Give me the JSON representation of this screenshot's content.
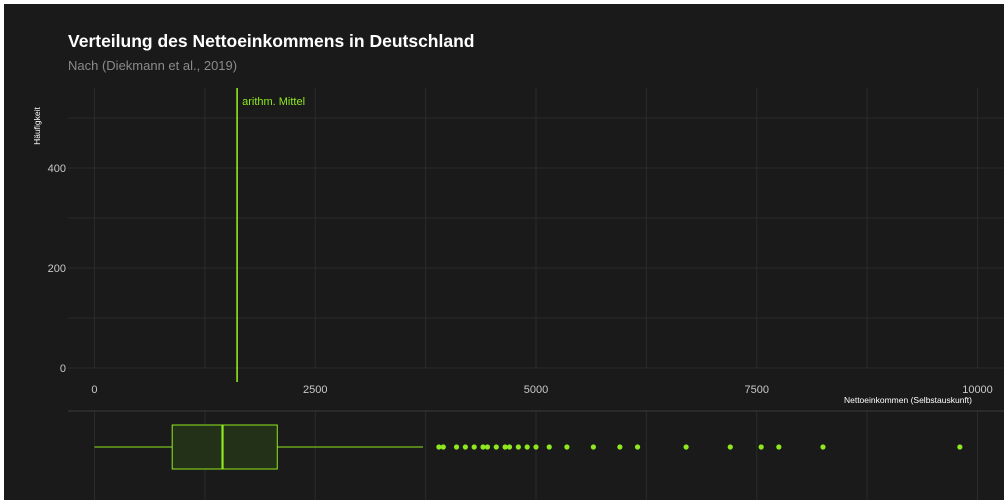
{
  "title": "Verteilung des Nettoeinkommens in Deutschland",
  "subtitle": "Nach (Diekmann et al., 2019)",
  "colors": {
    "background": "#1a1a1a",
    "accent": "#8fe81f",
    "grid": "#2b2b2b",
    "text": "#ffffff",
    "subtitle": "#8a8a8a",
    "tick": "#c8c8c8"
  },
  "chart_data": [
    {
      "type": "histogram",
      "xlabel": "Nettoeinkommen (Selbstauskunft)",
      "ylabel": "Häufigkeit",
      "xlim": [
        -300,
        10300
      ],
      "ylim": [
        0,
        560
      ],
      "x_ticks": [
        0,
        2500,
        5000,
        7500,
        10000
      ],
      "y_ticks": [
        0,
        200,
        400
      ],
      "grid": true,
      "bins": [],
      "reference_line": {
        "label": "arithm. Mittel",
        "x": 1615
      }
    },
    {
      "type": "boxplot",
      "orientation": "horizontal",
      "whisker_low": 0,
      "q1": 880,
      "median": 1450,
      "q3": 2070,
      "whisker_high": 3720,
      "outliers": [
        3900,
        3950,
        4100,
        4200,
        4300,
        4400,
        4450,
        4550,
        4650,
        4700,
        4800,
        4900,
        5000,
        5150,
        5350,
        5650,
        5950,
        6150,
        6700,
        7200,
        7550,
        7750,
        8250,
        9800
      ]
    }
  ]
}
